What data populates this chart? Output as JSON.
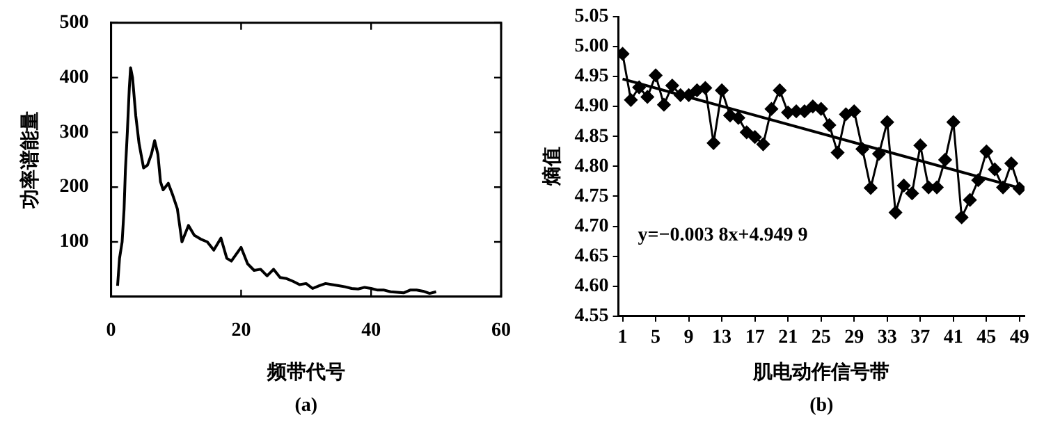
{
  "chart_data": [
    {
      "type": "line",
      "xlabel": "频带代号",
      "ylabel": "功率谱能量",
      "annotations": [
        "(a)"
      ],
      "color": "#000000",
      "marker": "none",
      "x": [
        1,
        1.3,
        1.7,
        2,
        2.2,
        2.5,
        2.8,
        3,
        3.3,
        3.8,
        4.3,
        5,
        5.6,
        6.2,
        6.7,
        7.2,
        7.6,
        8,
        8.8,
        9.5,
        10.2,
        10.9,
        11.9,
        12.8,
        13.8,
        14.8,
        15.8,
        16.9,
        17.8,
        18.5,
        20,
        21,
        22,
        23,
        24,
        25,
        26,
        27,
        28,
        29,
        30,
        31,
        32,
        33,
        34,
        35,
        36,
        37,
        38,
        39,
        40,
        41,
        42,
        43,
        44,
        45,
        46,
        47,
        48,
        49,
        50
      ],
      "values": [
        20,
        70,
        100,
        160,
        230,
        300,
        380,
        418,
        400,
        330,
        280,
        235,
        240,
        260,
        285,
        260,
        210,
        195,
        207,
        185,
        160,
        100,
        130,
        112,
        105,
        100,
        85,
        107,
        70,
        65,
        90,
        60,
        48,
        50,
        38,
        50,
        35,
        33,
        28,
        22,
        24,
        15,
        20,
        24,
        22,
        20,
        18,
        15,
        14,
        17,
        15,
        12,
        12,
        9,
        8,
        7,
        12,
        12,
        10,
        6,
        9
      ],
      "xlim": [
        0,
        60
      ],
      "xticks": [
        0,
        20,
        40,
        60
      ],
      "ylim": [
        0,
        500
      ],
      "yticks": [
        100,
        200,
        300,
        400,
        500
      ]
    },
    {
      "type": "line",
      "xlabel": "肌电动作信号带",
      "ylabel": "熵值",
      "annotations": [
        "y=−0.003 8x+4.949 9",
        "(b)"
      ],
      "marker": "diamond",
      "x": [
        1,
        2,
        3,
        4,
        5,
        6,
        7,
        8,
        9,
        10,
        11,
        12,
        13,
        14,
        15,
        16,
        17,
        18,
        19,
        20,
        21,
        22,
        23,
        24,
        25,
        26,
        27,
        28,
        29,
        30,
        31,
        32,
        33,
        34,
        35,
        36,
        37,
        38,
        39,
        40,
        41,
        42,
        43,
        44,
        45,
        46,
        47,
        48,
        49
      ],
      "series": [
        {
          "color": "#000000",
          "values": [
            4.988,
            4.911,
            4.932,
            4.916,
            4.952,
            4.903,
            4.935,
            4.919,
            4.919,
            4.927,
            4.931,
            4.839,
            4.927,
            4.885,
            4.881,
            4.857,
            4.849,
            4.837,
            4.896,
            4.927,
            4.89,
            4.892,
            4.892,
            4.9,
            4.896,
            4.869,
            4.823,
            4.887,
            4.892,
            4.829,
            4.764,
            4.821,
            4.874,
            4.723,
            4.768,
            4.755,
            4.835,
            4.765,
            4.765,
            4.811,
            4.874,
            4.715,
            4.744,
            4.777,
            4.825,
            4.795,
            4.765,
            4.805,
            4.763
          ]
        },
        {
          "type": "line",
          "marker": "none",
          "color": "#000000",
          "x": [
            1,
            49
          ],
          "values": [
            4.946,
            4.764
          ]
        }
      ],
      "xlim": [
        0.5,
        49.6
      ],
      "xticks": [
        1,
        5,
        9,
        13,
        17,
        21,
        25,
        29,
        33,
        37,
        41,
        45,
        49
      ],
      "ylim": [
        4.55,
        5.05
      ],
      "yticks": [
        4.55,
        {
          "value": 4.6,
          "label": "4.60"
        },
        4.65,
        {
          "value": 4.7,
          "label": "4.70"
        },
        4.75,
        {
          "value": 4.8,
          "label": "4.80"
        },
        4.85,
        {
          "value": 4.9,
          "label": "4.90"
        },
        4.95,
        {
          "value": 5,
          "label": "5.00"
        },
        5.05
      ]
    }
  ]
}
